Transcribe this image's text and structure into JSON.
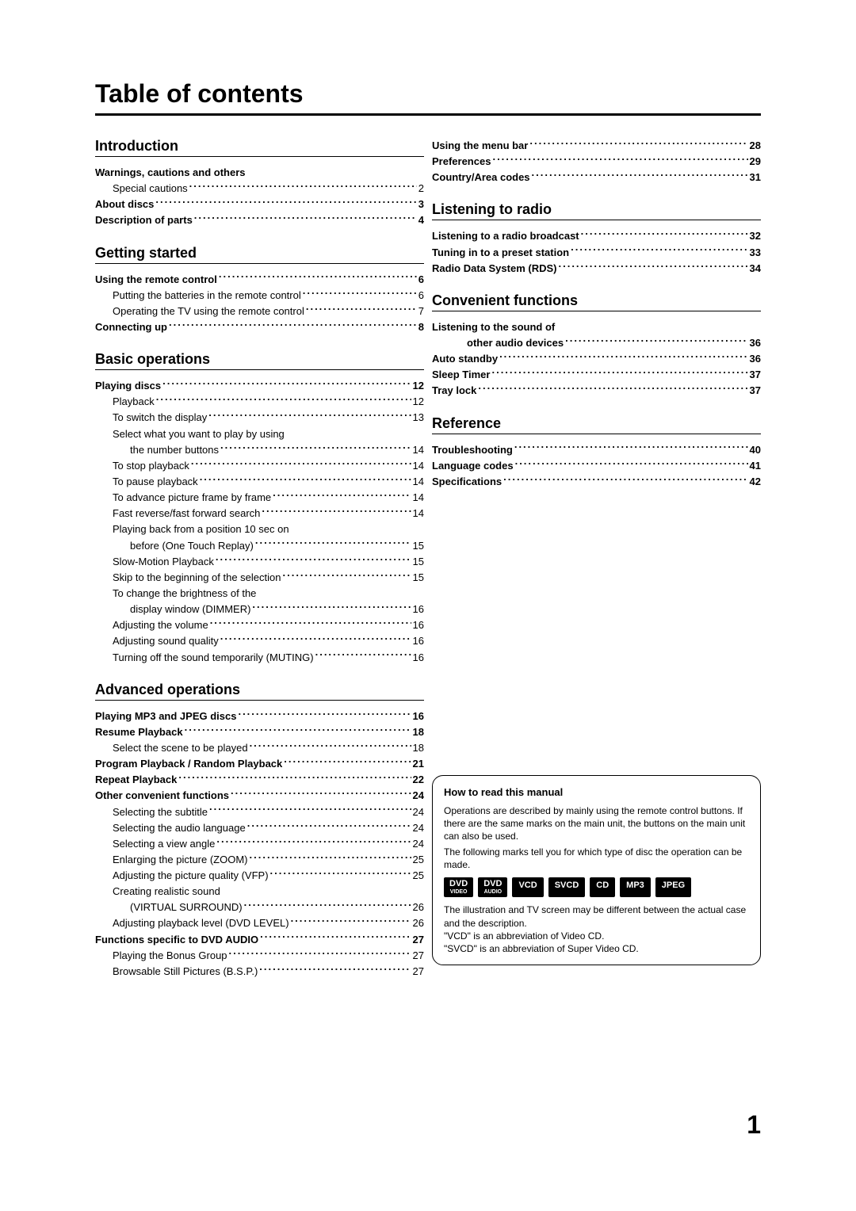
{
  "title": "Table of contents",
  "pageNumber": "1",
  "left": [
    {
      "type": "heading",
      "text": "Introduction",
      "first": true
    },
    {
      "type": "entry",
      "bold": true,
      "label": "Warnings, cautions and others",
      "page": ""
    },
    {
      "type": "entry",
      "sub": 1,
      "label": "Special cautions",
      "page": "2"
    },
    {
      "type": "entry",
      "bold": true,
      "label": "About discs",
      "page": "3"
    },
    {
      "type": "entry",
      "bold": true,
      "label": "Description of parts",
      "page": "4"
    },
    {
      "type": "heading",
      "text": "Getting started"
    },
    {
      "type": "entry",
      "bold": true,
      "label": "Using the remote control",
      "page": "6"
    },
    {
      "type": "entry",
      "sub": 1,
      "label": "Putting the batteries in the remote control",
      "page": "6"
    },
    {
      "type": "entry",
      "sub": 1,
      "label": "Operating the TV using the remote control",
      "page": "7"
    },
    {
      "type": "entry",
      "bold": true,
      "label": "Connecting up",
      "page": "8"
    },
    {
      "type": "heading",
      "text": "Basic operations"
    },
    {
      "type": "entry",
      "bold": true,
      "label": "Playing discs",
      "page": "12"
    },
    {
      "type": "entry",
      "sub": 1,
      "label": "Playback",
      "page": "12"
    },
    {
      "type": "entry",
      "sub": 1,
      "label": "To switch the display",
      "page": "13"
    },
    {
      "type": "entry",
      "sub": 1,
      "label": "Select what you want to play by using",
      "page": ""
    },
    {
      "type": "entry",
      "sub": 2,
      "label": "the number buttons",
      "page": "14"
    },
    {
      "type": "entry",
      "sub": 1,
      "label": "To stop playback",
      "page": "14"
    },
    {
      "type": "entry",
      "sub": 1,
      "label": "To pause playback",
      "page": "14"
    },
    {
      "type": "entry",
      "sub": 1,
      "label": "To advance picture frame by frame",
      "page": "14"
    },
    {
      "type": "entry",
      "sub": 1,
      "label": "Fast reverse/fast forward search",
      "page": "14"
    },
    {
      "type": "entry",
      "sub": 1,
      "label": "Playing back from a position 10 sec on",
      "page": ""
    },
    {
      "type": "entry",
      "sub": 2,
      "label": "before (One Touch Replay)",
      "page": "15"
    },
    {
      "type": "entry",
      "sub": 1,
      "label": "Slow-Motion Playback",
      "page": "15"
    },
    {
      "type": "entry",
      "sub": 1,
      "label": "Skip to the beginning of the selection",
      "page": "15"
    },
    {
      "type": "entry",
      "sub": 1,
      "label": "To change the brightness of the",
      "page": ""
    },
    {
      "type": "entry",
      "sub": 2,
      "label": "display window (DIMMER)",
      "page": "16"
    },
    {
      "type": "entry",
      "sub": 1,
      "label": "Adjusting the volume",
      "page": "16"
    },
    {
      "type": "entry",
      "sub": 1,
      "label": "Adjusting sound quality",
      "page": "16"
    },
    {
      "type": "entry",
      "sub": 1,
      "label": "Turning off the sound temporarily (MUTING)",
      "page": "16"
    },
    {
      "type": "heading",
      "text": "Advanced operations"
    },
    {
      "type": "entry",
      "bold": true,
      "label": "Playing MP3 and JPEG discs",
      "page": "16"
    },
    {
      "type": "entry",
      "bold": true,
      "label": "Resume Playback",
      "page": "18"
    },
    {
      "type": "entry",
      "sub": 1,
      "label": "Select the scene to be played",
      "page": "18"
    },
    {
      "type": "entry",
      "bold": true,
      "label": "Program Playback / Random Playback",
      "page": "21"
    },
    {
      "type": "entry",
      "bold": true,
      "label": "Repeat Playback",
      "page": "22"
    },
    {
      "type": "entry",
      "bold": true,
      "label": "Other convenient functions",
      "page": "24"
    },
    {
      "type": "entry",
      "sub": 1,
      "label": "Selecting the subtitle",
      "page": "24"
    },
    {
      "type": "entry",
      "sub": 1,
      "label": "Selecting the audio language",
      "page": "24"
    },
    {
      "type": "entry",
      "sub": 1,
      "label": "Selecting a view angle",
      "page": "24"
    },
    {
      "type": "entry",
      "sub": 1,
      "label": "Enlarging the picture (ZOOM)",
      "page": "25"
    },
    {
      "type": "entry",
      "sub": 1,
      "label": "Adjusting the picture quality (VFP)",
      "page": "25"
    },
    {
      "type": "entry",
      "sub": 1,
      "label": "Creating realistic sound",
      "page": ""
    },
    {
      "type": "entry",
      "sub": 2,
      "label": "(VIRTUAL SURROUND)",
      "page": "26"
    },
    {
      "type": "entry",
      "sub": 1,
      "label": "Adjusting playback level (DVD LEVEL)",
      "page": "26"
    },
    {
      "type": "entry",
      "bold": true,
      "label": "Functions specific to DVD AUDIO",
      "page": "27"
    },
    {
      "type": "entry",
      "sub": 1,
      "label": "Playing the Bonus Group",
      "page": "27"
    },
    {
      "type": "entry",
      "sub": 1,
      "label": "Browsable Still Pictures (B.S.P.)",
      "page": "27"
    }
  ],
  "right": [
    {
      "type": "entry",
      "bold": true,
      "label": "Using the menu bar",
      "page": "28"
    },
    {
      "type": "entry",
      "bold": true,
      "label": "Preferences",
      "page": "29"
    },
    {
      "type": "entry",
      "bold": true,
      "label": "Country/Area codes",
      "page": "31"
    },
    {
      "type": "heading",
      "text": "Listening to radio"
    },
    {
      "type": "entry",
      "bold": true,
      "label": "Listening to a radio broadcast",
      "page": "32"
    },
    {
      "type": "entry",
      "bold": true,
      "label": "Tuning in to a preset station",
      "page": "33"
    },
    {
      "type": "entry",
      "bold": true,
      "label": "Radio Data System (RDS)",
      "page": "34"
    },
    {
      "type": "heading",
      "text": "Convenient functions"
    },
    {
      "type": "entry",
      "bold": true,
      "label": "Listening to the sound of",
      "page": ""
    },
    {
      "type": "entry",
      "bold": true,
      "sub": 2,
      "label": "other audio devices",
      "page": "36"
    },
    {
      "type": "entry",
      "bold": true,
      "label": "Auto standby",
      "page": "36"
    },
    {
      "type": "entry",
      "bold": true,
      "label": "Sleep Timer",
      "page": "37"
    },
    {
      "type": "entry",
      "bold": true,
      "label": "Tray lock",
      "page": "37"
    },
    {
      "type": "heading",
      "text": "Reference"
    },
    {
      "type": "entry",
      "bold": true,
      "label": "Troubleshooting",
      "page": "40"
    },
    {
      "type": "entry",
      "bold": true,
      "label": "Language codes",
      "page": "41"
    },
    {
      "type": "entry",
      "bold": true,
      "label": "Specifications",
      "page": "42"
    }
  ],
  "infobox": {
    "title": "How to read this manual",
    "p1": "Operations are described by mainly using the remote control buttons. If there are the same marks on the main unit, the buttons on the main unit can also be used.",
    "p2": "The following marks tell you for which type of disc the operation can be made.",
    "badges": [
      {
        "top": "DVD",
        "sub": "VIDEO"
      },
      {
        "top": "DVD",
        "sub": "AUDIO"
      },
      {
        "top": "VCD"
      },
      {
        "top": "SVCD"
      },
      {
        "top": "CD"
      },
      {
        "top": "MP3"
      },
      {
        "top": "JPEG"
      }
    ],
    "p3a": "The illustration and TV screen may be different between the actual case and the description.",
    "p3b": "\"VCD\" is an abbreviation of Video CD.",
    "p3c": "\"SVCD\" is an abbreviation of Super Video CD."
  }
}
